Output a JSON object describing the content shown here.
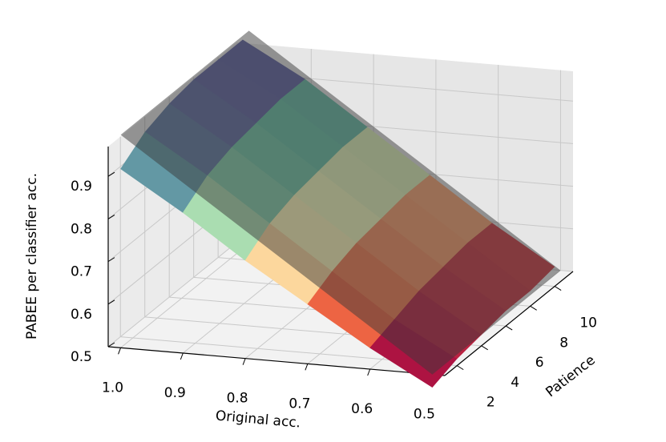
{
  "chart_data": {
    "type": "surface3d",
    "xlabel": "Original acc.",
    "ylabel": "Patience",
    "zlabel": "PABEE per classifier acc.",
    "x": [
      1.0,
      0.9,
      0.8,
      0.7,
      0.6,
      0.5
    ],
    "y": [
      1,
      3,
      5,
      7,
      9,
      11
    ],
    "z": [
      [
        0.92,
        0.96,
        0.98,
        0.99,
        0.99,
        0.99
      ],
      [
        0.83,
        0.87,
        0.89,
        0.9,
        0.91,
        0.91
      ],
      [
        0.73,
        0.77,
        0.79,
        0.8,
        0.81,
        0.81
      ],
      [
        0.64,
        0.67,
        0.69,
        0.7,
        0.71,
        0.71
      ],
      [
        0.55,
        0.57,
        0.59,
        0.6,
        0.61,
        0.61
      ],
      [
        0.47,
        0.49,
        0.5,
        0.51,
        0.51,
        0.52
      ]
    ],
    "xlim": [
      0.48,
      1.02
    ],
    "ylim": [
      1,
      11.5
    ],
    "zlim": [
      0.5,
      0.97
    ],
    "xticks": [
      {
        "value": 1.0,
        "label": "1.0"
      },
      0.9,
      0.8,
      0.7,
      0.6,
      0.5
    ],
    "yticks": [
      2,
      4,
      6,
      8,
      10
    ],
    "zticks": [
      0.5,
      0.6,
      0.7,
      0.8,
      0.9
    ],
    "colormap": [
      "#9e0142",
      "#f46d43",
      "#ffffbf",
      "#66c2a5",
      "#5e4fa2"
    ],
    "plane_color": "#3a3a3a",
    "plane_opacity": 0.5,
    "grid": true
  }
}
